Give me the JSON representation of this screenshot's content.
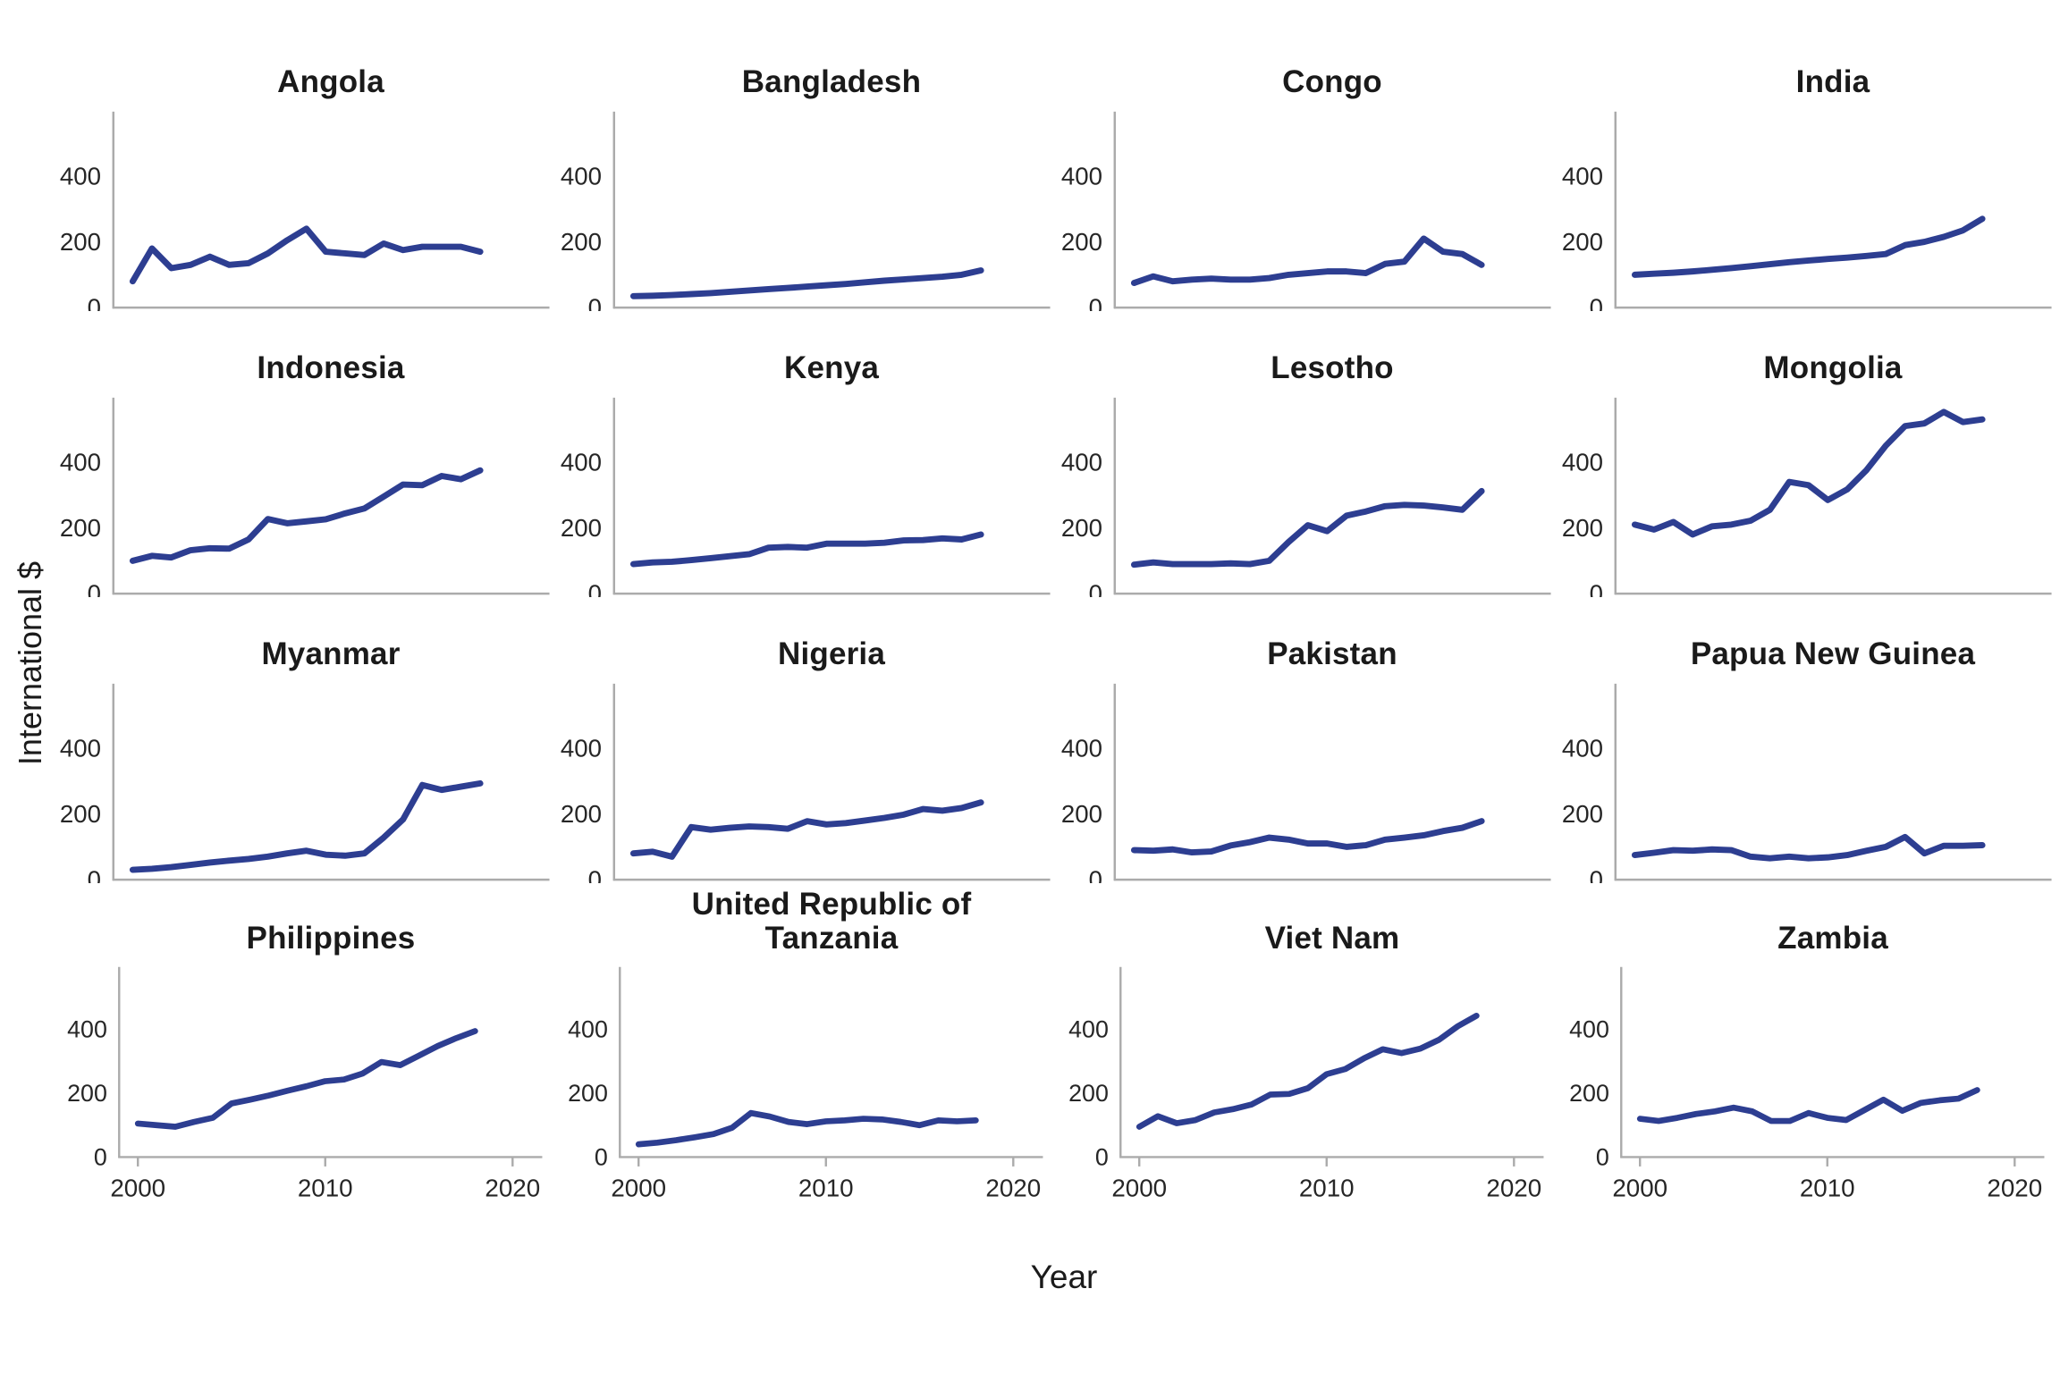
{
  "figure": {
    "ylabel": "International $",
    "xlabel": "Year"
  },
  "chart_data": {
    "type": "line",
    "title": "",
    "x": [
      2000,
      2001,
      2002,
      2003,
      2004,
      2005,
      2006,
      2007,
      2008,
      2009,
      2010,
      2011,
      2012,
      2013,
      2014,
      2015,
      2016,
      2017,
      2018
    ],
    "xlabel": "Year",
    "ylabel": "International $",
    "yticks": [
      0,
      200,
      400
    ],
    "xticks": [
      2000,
      2010,
      2020
    ],
    "ylim": [
      0,
      580
    ],
    "xlim": [
      1999,
      2021.4
    ],
    "grid": false,
    "legend": "none",
    "line_color": "#2d3e91",
    "axis_color": "#ababab",
    "tick_label_color": "#262626",
    "series": [
      {
        "name": "Angola",
        "values": [
          80,
          180,
          120,
          130,
          155,
          130,
          135,
          165,
          205,
          240,
          170,
          165,
          160,
          195,
          175,
          185,
          185,
          185,
          170
        ]
      },
      {
        "name": "Bangladesh",
        "values": [
          35,
          36,
          38,
          41,
          44,
          48,
          52,
          56,
          60,
          64,
          68,
          72,
          77,
          82,
          86,
          90,
          94,
          100,
          113
        ]
      },
      {
        "name": "Congo",
        "values": [
          75,
          95,
          80,
          85,
          88,
          85,
          85,
          90,
          100,
          105,
          110,
          110,
          105,
          133,
          140,
          210,
          170,
          163,
          130
        ]
      },
      {
        "name": "India",
        "values": [
          100,
          103,
          106,
          110,
          115,
          120,
          126,
          132,
          138,
          143,
          148,
          152,
          157,
          163,
          190,
          200,
          215,
          235,
          270
        ]
      },
      {
        "name": "Indonesia",
        "values": [
          100,
          115,
          110,
          132,
          138,
          137,
          165,
          227,
          214,
          220,
          226,
          244,
          259,
          295,
          332,
          330,
          358,
          348,
          375
        ]
      },
      {
        "name": "Kenya",
        "values": [
          90,
          95,
          97,
          102,
          108,
          114,
          120,
          140,
          142,
          140,
          152,
          152,
          152,
          155,
          162,
          163,
          168,
          165,
          180
        ]
      },
      {
        "name": "Lesotho",
        "values": [
          88,
          95,
          90,
          90,
          90,
          92,
          90,
          100,
          157,
          208,
          190,
          237,
          250,
          266,
          270,
          268,
          262,
          255,
          312
        ]
      },
      {
        "name": "Mongolia",
        "values": [
          210,
          195,
          218,
          180,
          205,
          210,
          222,
          255,
          340,
          330,
          285,
          317,
          376,
          450,
          510,
          518,
          553,
          522,
          530
        ]
      },
      {
        "name": "Myanmar",
        "values": [
          30,
          33,
          38,
          45,
          52,
          58,
          63,
          70,
          80,
          88,
          76,
          73,
          80,
          128,
          183,
          288,
          273,
          283,
          293
        ]
      },
      {
        "name": "Nigeria",
        "values": [
          80,
          85,
          70,
          160,
          152,
          158,
          162,
          160,
          155,
          178,
          168,
          172,
          180,
          188,
          198,
          215,
          210,
          218,
          235
        ]
      },
      {
        "name": "Pakistan",
        "values": [
          90,
          88,
          92,
          83,
          86,
          104,
          114,
          128,
          122,
          110,
          110,
          100,
          105,
          122,
          128,
          135,
          148,
          158,
          178
        ]
      },
      {
        "name": "Papua New Guinea",
        "values": [
          75,
          82,
          90,
          88,
          92,
          90,
          70,
          65,
          70,
          65,
          68,
          75,
          88,
          100,
          130,
          80,
          103,
          103,
          105
        ]
      },
      {
        "name": "Philippines",
        "values": [
          105,
          100,
          95,
          110,
          123,
          168,
          180,
          193,
          208,
          222,
          238,
          243,
          262,
          298,
          288,
          318,
          348,
          373,
          395
        ]
      },
      {
        "name": "United Republic of Tanzania",
        "values": [
          40,
          45,
          53,
          62,
          72,
          92,
          138,
          127,
          110,
          103,
          112,
          115,
          120,
          118,
          110,
          100,
          115,
          112,
          115
        ]
      },
      {
        "name": "Viet Nam",
        "values": [
          95,
          128,
          106,
          116,
          140,
          150,
          165,
          196,
          198,
          216,
          260,
          276,
          310,
          338,
          326,
          340,
          368,
          410,
          443
        ]
      },
      {
        "name": "Zambia",
        "values": [
          120,
          113,
          123,
          135,
          143,
          155,
          143,
          113,
          113,
          138,
          123,
          116,
          148,
          180,
          145,
          170,
          178,
          183,
          210
        ]
      }
    ]
  }
}
